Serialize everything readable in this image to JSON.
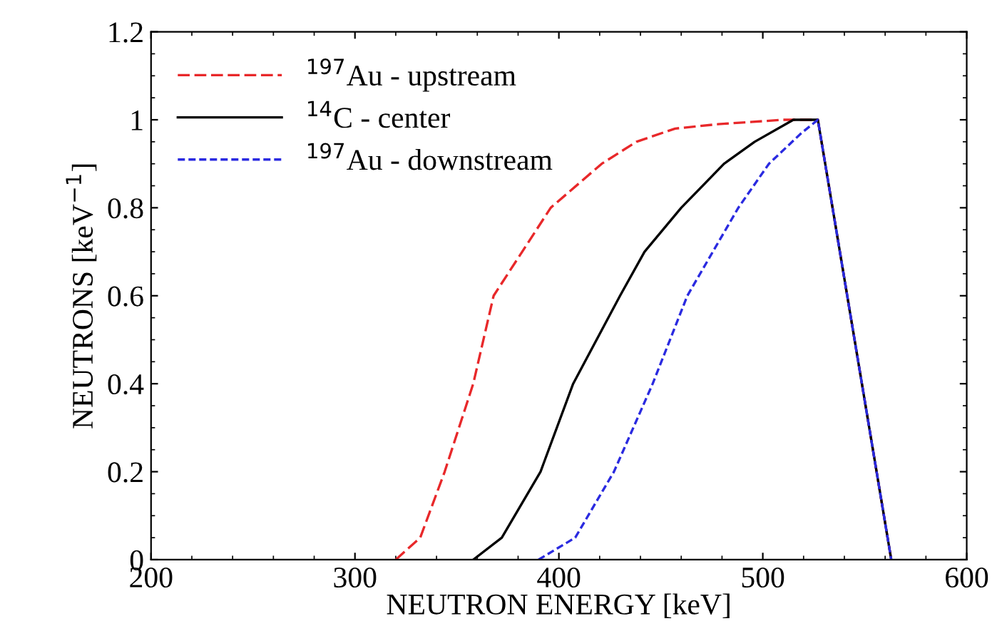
{
  "chart_data": {
    "type": "line",
    "xlabel": "NEUTRON ENERGY [keV]",
    "ylabel": "NEUTRONS [keV$^{−1}$]",
    "xlim": [
      200,
      600
    ],
    "xticks": [
      200,
      300,
      400,
      500,
      600
    ],
    "ylim": [
      0,
      1.2
    ],
    "yticks": [
      0,
      0.2,
      0.4,
      0.6,
      0.8,
      1,
      1.2
    ],
    "legend": "top left",
    "grid": false,
    "series": [
      {
        "name": "$^{197}$Au - upstream",
        "color": "#e8282a",
        "line_style": "dashed",
        "x": [
          320,
          332,
          344,
          358,
          368,
          382,
          396,
          421,
          438,
          457,
          478,
          510,
          527,
          563
        ],
        "values": [
          0,
          0.05,
          0.2,
          0.4,
          0.6,
          0.7,
          0.8,
          0.9,
          0.95,
          0.98,
          0.99,
          1,
          1,
          0
        ]
      },
      {
        "name": "$^{14}$C - center",
        "color": "#000000",
        "line_style": "solid",
        "x": [
          358,
          372,
          391,
          407,
          430,
          442,
          460,
          481,
          496,
          515,
          527,
          563
        ],
        "values": [
          0,
          0.05,
          0.2,
          0.4,
          0.6,
          0.7,
          0.8,
          0.9,
          0.95,
          1,
          1,
          0
        ]
      },
      {
        "name": "$^{197}$Au - downstream",
        "color": "#2a2ae0",
        "line_style": "dotted",
        "x": [
          390,
          408,
          427,
          446,
          463,
          488,
          503,
          519,
          527,
          563
        ],
        "values": [
          0,
          0.05,
          0.2,
          0.4,
          0.6,
          0.8,
          0.9,
          0.97,
          1,
          0
        ]
      }
    ]
  }
}
